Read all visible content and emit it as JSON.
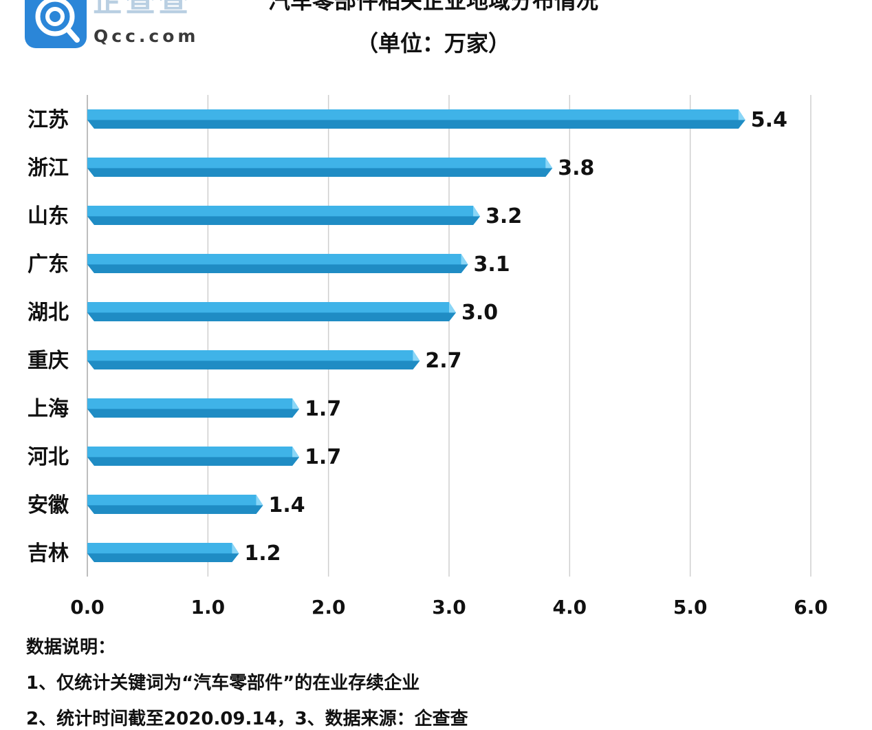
{
  "logo": {
    "text_cn": "企查查",
    "text_en": "Qcc.com"
  },
  "notes": {
    "heading": "数据说明：",
    "line1": "1、仅统计关键词为“汽车零部件”的在业存续企业",
    "line2": "2、统计时间截至2020.09.14，3、数据来源：企查查"
  },
  "colors": {
    "bar": "#3fb3e8",
    "bar_dark": "#1f8cc4",
    "bar_light": "#8ad6f7",
    "grid": "#cfcfcf"
  },
  "chart_data": {
    "type": "bar",
    "orientation": "horizontal",
    "title": "汽车零部件相关企业地域分布情况",
    "subtitle": "（单位：万家）",
    "categories": [
      "江苏",
      "浙江",
      "山东",
      "广东",
      "湖北",
      "重庆",
      "上海",
      "河北",
      "安徽",
      "吉林"
    ],
    "values": [
      5.4,
      3.8,
      3.2,
      3.1,
      3.0,
      2.7,
      1.7,
      1.7,
      1.4,
      1.2
    ],
    "value_labels": [
      "5.4",
      "3.8",
      "3.2",
      "3.1",
      "3.0",
      "2.7",
      "1.7",
      "1.7",
      "1.4",
      "1.2"
    ],
    "xlim": [
      0,
      6
    ],
    "xticks": [
      "0.0",
      "1.0",
      "2.0",
      "3.0",
      "4.0",
      "5.0",
      "6.0"
    ],
    "grid": true
  }
}
